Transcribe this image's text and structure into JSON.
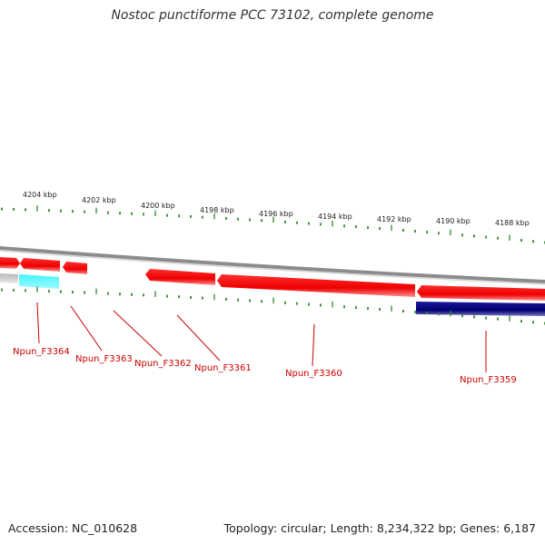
{
  "title": "Nostoc punctiforme PCC 73102, complete genome",
  "footer": {
    "accession": "Accession: NC_010628",
    "summary": "Topology: circular; Length: 8,234,322 bp; Genes: 6,187"
  },
  "scale_labels": [
    "4204 kbp",
    "4202 kbp",
    "4200 kbp",
    "4198 kbp",
    "4196 kbp",
    "4194 kbp",
    "4192 kbp",
    "4190 kbp",
    "4188 kbp"
  ],
  "genes": [
    {
      "name": "Npun_F3364",
      "strand": "minus",
      "color": "#00e5ee"
    },
    {
      "name": "Npun_F3363",
      "strand": "plus",
      "color": "#ff0000"
    },
    {
      "name": "Npun_F3362",
      "strand": "plus",
      "color": "#ff0000"
    },
    {
      "name": "Npun_F3361",
      "strand": "plus",
      "color": "#ff0000"
    },
    {
      "name": "Npun_F3360",
      "strand": "plus",
      "color": "#ff0000"
    },
    {
      "name": "Npun_F3359",
      "strand": "minus",
      "color": "#000080"
    }
  ],
  "colors": {
    "backbone": "#8c8c8c",
    "tick": "#2e8b2e",
    "label": "#cc0000"
  }
}
